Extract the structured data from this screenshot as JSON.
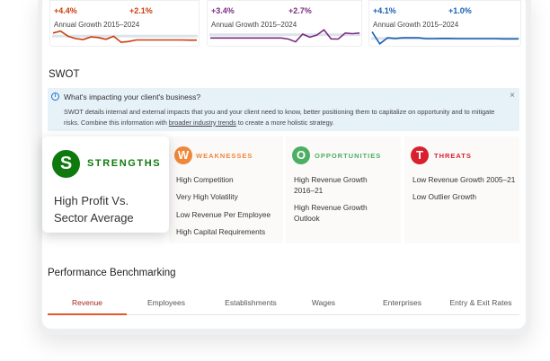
{
  "sparklines": [
    {
      "left_value": "+4.4%",
      "right_value": "+2.1%",
      "label": "Annual Growth 2015–2024",
      "color": "#cc3d0c",
      "values": [
        3.5,
        4.4,
        2.0,
        0.9,
        0.5,
        1.7,
        1.4,
        0.6,
        2.0,
        -0.8,
        -0.4,
        0.3,
        0.3,
        0.3,
        0.3,
        0.3,
        0.3,
        0.3,
        0.2,
        0.2
      ],
      "baseline": 2.1
    },
    {
      "left_value": "+3.4%",
      "right_value": "+2.7%",
      "label": "Annual Growth 2015–2024",
      "color": "#7b2d82",
      "values": [
        1.2,
        1.2,
        1.2,
        1.2,
        1.2,
        1.2,
        1.2,
        1.2,
        1.2,
        1.2,
        1.2,
        0.7,
        -0.6,
        3.0,
        1.6,
        2.6,
        5.0,
        0.8,
        0.7,
        3.5,
        3.2,
        3.5
      ],
      "baseline": 2.7
    },
    {
      "left_value": "+4.1%",
      "right_value": "+1.0%",
      "label": "Annual Growth 2015–2024",
      "color": "#1a5fb4",
      "values": [
        4.1,
        -1.5,
        1.3,
        1.0,
        1.3,
        1.3,
        1.3,
        0.9,
        0.9,
        1.0,
        1.0,
        0.9,
        0.9,
        0.9,
        0.9,
        0.9,
        0.9,
        0.8,
        0.8,
        0.8
      ],
      "baseline": 1.0
    }
  ],
  "swot": {
    "heading": "SWOT",
    "info": {
      "title": "What's impacting your client's business?",
      "text_before": "SWOT details internal and external impacts that you and your client need to know, better positioning them to capitalize on opportunity and to mitigate risks. Combine this information with ",
      "link": "broader industry trends",
      "text_after": " to create a more holistic strategy.",
      "close": "×",
      "icon": "info-icon"
    },
    "strengths": {
      "letter": "S",
      "title": "STRENGTHS",
      "color": "#0e7a0d",
      "items": [
        "High Profit Vs. Sector Average"
      ]
    },
    "weaknesses": {
      "letter": "W",
      "title": "WEAKNESSES",
      "color": "#f0873a",
      "items": [
        "High Competition",
        "Very High Volatility",
        "Low Revenue Per Employee",
        "High Capital Requirements"
      ]
    },
    "opportunities": {
      "letter": "O",
      "title": "OPPORTUNITIES",
      "color": "#4caf63",
      "items": [
        "High Revenue Growth 2016–21",
        "High Revenue Growth Outlook"
      ]
    },
    "threats": {
      "letter": "T",
      "title": "THREATS",
      "color": "#d9202f",
      "items": [
        "Low Revenue Growth 2005–21",
        "Low Outlier Growth"
      ]
    }
  },
  "benchmarking": {
    "heading": "Performance Benchmarking",
    "tabs": [
      "Revenue",
      "Employees",
      "Establishments",
      "Wages",
      "Enterprises",
      "Entry & Exit Rates"
    ],
    "active_tab": "Revenue",
    "accent": "#e8562f"
  }
}
